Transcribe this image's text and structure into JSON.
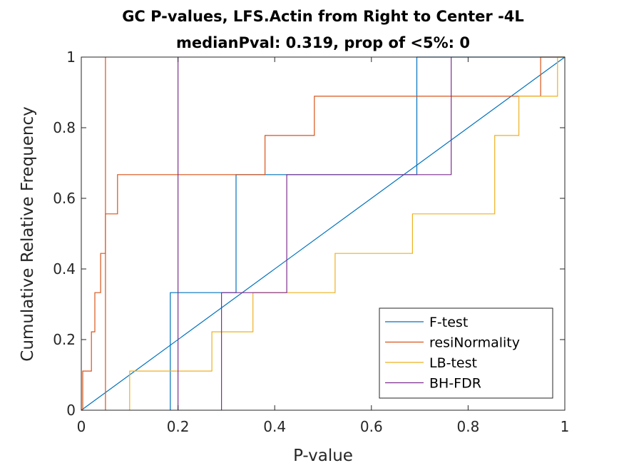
{
  "chart_data": {
    "type": "line",
    "title": "GC P-values, LFS.Actin from Right to Center -4L",
    "subtitle": "medianPval: 0.319, prop of <5%: 0",
    "xlabel": "P-value",
    "ylabel": "Cumulative Relative Frequency",
    "xlim": [
      0,
      1
    ],
    "ylim": [
      0,
      1
    ],
    "xticks": [
      "0",
      "0.2",
      "0.4",
      "0.6",
      "0.8",
      "1"
    ],
    "yticks": [
      "0",
      "0.2",
      "0.4",
      "0.6",
      "0.8",
      "1"
    ],
    "grid": false,
    "legend_position": "bottom-right",
    "series": [
      {
        "name": "F-test",
        "color": "#0072BD",
        "steps": [
          [
            0.184,
            0.0
          ],
          [
            0.184,
            0.333
          ],
          [
            0.32,
            0.333
          ],
          [
            0.32,
            0.667
          ],
          [
            0.694,
            0.667
          ],
          [
            0.694,
            1.0
          ],
          [
            1.0,
            1.0
          ]
        ],
        "diagonal": [
          [
            0,
            0
          ],
          [
            1,
            1
          ]
        ]
      },
      {
        "name": "resiNormality",
        "color": "#D95319",
        "steps": [
          [
            0.0,
            0.0
          ],
          [
            0.003,
            0.0
          ],
          [
            0.003,
            0.111
          ],
          [
            0.021,
            0.111
          ],
          [
            0.021,
            0.222
          ],
          [
            0.028,
            0.222
          ],
          [
            0.028,
            0.333
          ],
          [
            0.04,
            0.333
          ],
          [
            0.04,
            0.444
          ],
          [
            0.05,
            0.444
          ],
          [
            0.05,
            0.556
          ],
          [
            0.075,
            0.556
          ],
          [
            0.075,
            0.667
          ],
          [
            0.38,
            0.667
          ],
          [
            0.38,
            0.778
          ],
          [
            0.482,
            0.778
          ],
          [
            0.482,
            0.889
          ],
          [
            0.95,
            0.889
          ],
          [
            0.95,
            1.0
          ],
          [
            1.0,
            1.0
          ]
        ],
        "vline": 0.05
      },
      {
        "name": "LB-test",
        "color": "#EDB120",
        "steps": [
          [
            0.1,
            0.0
          ],
          [
            0.1,
            0.111
          ],
          [
            0.27,
            0.111
          ],
          [
            0.27,
            0.222
          ],
          [
            0.355,
            0.222
          ],
          [
            0.355,
            0.333
          ],
          [
            0.525,
            0.333
          ],
          [
            0.525,
            0.444
          ],
          [
            0.685,
            0.444
          ],
          [
            0.685,
            0.556
          ],
          [
            0.855,
            0.556
          ],
          [
            0.855,
            0.778
          ],
          [
            0.905,
            0.778
          ],
          [
            0.905,
            0.889
          ],
          [
            0.985,
            0.889
          ],
          [
            0.985,
            1.0
          ],
          [
            1.0,
            1.0
          ]
        ]
      },
      {
        "name": "BH-FDR",
        "color": "#7E2F8E",
        "steps": [
          [
            0.29,
            0.0
          ],
          [
            0.29,
            0.333
          ],
          [
            0.425,
            0.333
          ],
          [
            0.425,
            0.667
          ],
          [
            0.765,
            0.667
          ],
          [
            0.765,
            1.0
          ]
        ],
        "vline": 0.2
      }
    ]
  }
}
